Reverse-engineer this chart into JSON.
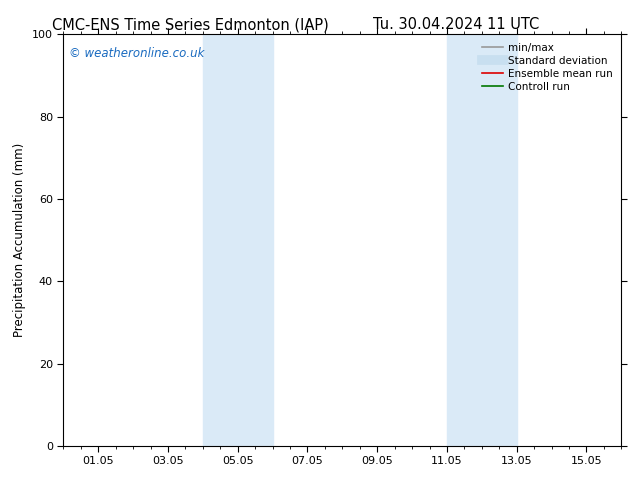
{
  "title_left": "CMC-ENS Time Series Edmonton (IAP)",
  "title_right": "Tu. 30.04.2024 11 UTC",
  "ylabel": "Precipitation Accumulation (mm)",
  "ylim": [
    0,
    100
  ],
  "yticks": [
    0,
    20,
    40,
    60,
    80,
    100
  ],
  "xtick_labels": [
    "01.05",
    "03.05",
    "05.05",
    "07.05",
    "09.05",
    "11.05",
    "13.05",
    "15.05"
  ],
  "xtick_positions": [
    1,
    3,
    5,
    7,
    9,
    11,
    13,
    15
  ],
  "xmin": 0,
  "xmax": 16,
  "shaded_regions": [
    {
      "xmin": 4.0,
      "xmax": 6.0,
      "color": "#daeaf7"
    },
    {
      "xmin": 11.0,
      "xmax": 13.0,
      "color": "#daeaf7"
    }
  ],
  "watermark_text": "© weatheronline.co.uk",
  "watermark_color": "#1a6bc0",
  "legend_items": [
    {
      "label": "min/max",
      "color": "#999999",
      "lw": 1.2
    },
    {
      "label": "Standard deviation",
      "color": "#c8dff0",
      "lw": 7
    },
    {
      "label": "Ensemble mean run",
      "color": "#dd0000",
      "lw": 1.2
    },
    {
      "label": "Controll run",
      "color": "#007700",
      "lw": 1.2
    }
  ],
  "bg_color": "#ffffff",
  "plot_bg_color": "#ffffff",
  "title_fontsize": 10.5,
  "axis_label_fontsize": 8.5,
  "tick_fontsize": 8,
  "watermark_fontsize": 8.5,
  "legend_fontsize": 7.5
}
